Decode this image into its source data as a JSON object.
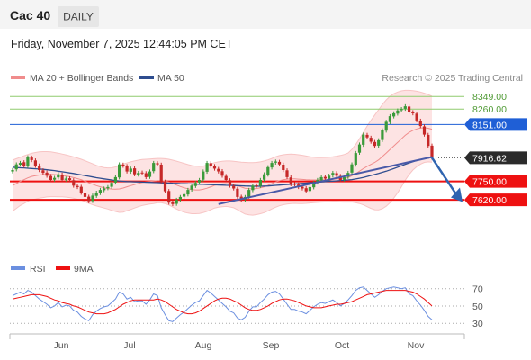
{
  "header": {
    "symbol": "Cac 40",
    "period": "DAILY"
  },
  "timestamp": "Friday, November 7, 2025 12:44:05 PM CET",
  "credit": "Research © 2025 Trading Central",
  "colors": {
    "up": "#3a9a3a",
    "down": "#c62828",
    "ma20": "#f08c8c",
    "band_fill": "#fde3e3",
    "ma50": "#2e4d8f",
    "trend": "#4a5aa8",
    "resistance_green": "#8fcc6e",
    "pivot_blue": "#1f5fd6",
    "support_red": "#ee1111",
    "rsi": "#6b8fe0",
    "rsi_ma": "#ee1111"
  },
  "chart_data": [
    {
      "type": "candlestick",
      "title": "Cac 40",
      "legend": [
        "MA 20 + Bollinger Bands",
        "MA 50"
      ],
      "x_ticks": [
        "Jun",
        "Jul",
        "Aug",
        "Sep",
        "Oct",
        "Nov"
      ],
      "ylim": [
        7240,
        8420
      ],
      "last_price": 7916.62,
      "levels": [
        {
          "value": 8349.0,
          "label": "8349.00",
          "kind": "resistance"
        },
        {
          "value": 8260.0,
          "label": "8260.00",
          "kind": "resistance"
        },
        {
          "value": 8151.0,
          "label": "8151.00",
          "kind": "pivot"
        },
        {
          "value": 7750.0,
          "label": "7750.00",
          "kind": "support"
        },
        {
          "value": 7620.0,
          "label": "7620.00",
          "kind": "support"
        }
      ],
      "closes": [
        7830,
        7870,
        7880,
        7860,
        7920,
        7900,
        7860,
        7830,
        7810,
        7790,
        7760,
        7775,
        7800,
        7760,
        7770,
        7760,
        7720,
        7710,
        7670,
        7640,
        7610,
        7650,
        7670,
        7690,
        7700,
        7710,
        7740,
        7780,
        7870,
        7860,
        7820,
        7840,
        7800,
        7810,
        7810,
        7780,
        7820,
        7880,
        7870,
        7750,
        7680,
        7600,
        7590,
        7620,
        7640,
        7660,
        7690,
        7720,
        7740,
        7760,
        7820,
        7880,
        7860,
        7840,
        7820,
        7790,
        7760,
        7720,
        7700,
        7640,
        7620,
        7640,
        7690,
        7720,
        7720,
        7760,
        7800,
        7850,
        7880,
        7890,
        7870,
        7830,
        7780,
        7730,
        7730,
        7710,
        7700,
        7680,
        7710,
        7740,
        7760,
        7780,
        7770,
        7790,
        7810,
        7790,
        7760,
        7780,
        7810,
        7870,
        7950,
        8010,
        8080,
        8060,
        8030,
        8000,
        8040,
        8110,
        8170,
        8210,
        8230,
        8250,
        8260,
        8280,
        8240,
        8230,
        8180,
        8140,
        8080,
        8000,
        7916.62
      ],
      "opens": [
        7820,
        7835,
        7868,
        7885,
        7858,
        7918,
        7898,
        7862,
        7828,
        7812,
        7788,
        7762,
        7778,
        7798,
        7762,
        7772,
        7758,
        7718,
        7712,
        7668,
        7642,
        7612,
        7648,
        7668,
        7688,
        7702,
        7712,
        7742,
        7778,
        7868,
        7858,
        7818,
        7842,
        7798,
        7812,
        7808,
        7782,
        7822,
        7878,
        7868,
        7748,
        7682,
        7602,
        7592,
        7622,
        7642,
        7658,
        7692,
        7718,
        7742,
        7762,
        7818,
        7878,
        7858,
        7838,
        7822,
        7788,
        7758,
        7718,
        7698,
        7642,
        7622,
        7642,
        7688,
        7722,
        7718,
        7762,
        7798,
        7848,
        7882,
        7888,
        7868,
        7828,
        7778,
        7732,
        7728,
        7712,
        7702,
        7682,
        7708,
        7742,
        7758,
        7782,
        7768,
        7792,
        7808,
        7788,
        7762,
        7782,
        7812,
        7868,
        7952,
        8008,
        8078,
        8058,
        8028,
        8002,
        8042,
        8108,
        8168,
        8208,
        8228,
        8252,
        8262,
        8278,
        8238,
        8228,
        8178,
        8138,
        8078,
        8002
      ],
      "ma20": [
        7720,
        7735,
        7750,
        7762,
        7775,
        7785,
        7790,
        7795,
        7798,
        7800,
        7800,
        7798,
        7795,
        7792,
        7788,
        7783,
        7777,
        7770,
        7762,
        7752,
        7740,
        7730,
        7720,
        7712,
        7705,
        7700,
        7696,
        7695,
        7697,
        7703,
        7712,
        7720,
        7728,
        7736,
        7742,
        7746,
        7749,
        7752,
        7756,
        7756,
        7752,
        7745,
        7735,
        7724,
        7714,
        7705,
        7698,
        7692,
        7690,
        7690,
        7694,
        7702,
        7712,
        7722,
        7728,
        7732,
        7734,
        7732,
        7728,
        7720,
        7710,
        7702,
        7698,
        7697,
        7700,
        7705,
        7712,
        7722,
        7734,
        7746,
        7755,
        7762,
        7766,
        7768,
        7768,
        7766,
        7764,
        7762,
        7761,
        7760,
        7760,
        7761,
        7762,
        7763,
        7765,
        7767,
        7769,
        7772,
        7777,
        7790,
        7805,
        7822,
        7840,
        7856,
        7870,
        7884,
        7902,
        7925,
        7950,
        7975,
        8000,
        8025,
        8050,
        8075,
        8095,
        8110,
        8120,
        8126,
        8128,
        8125,
        8118
      ],
      "bb_upper": [
        7900,
        7910,
        7920,
        7930,
        7940,
        7948,
        7954,
        7958,
        7960,
        7960,
        7958,
        7954,
        7949,
        7943,
        7937,
        7930,
        7923,
        7915,
        7906,
        7896,
        7885,
        7874,
        7863,
        7854,
        7848,
        7845,
        7846,
        7852,
        7862,
        7872,
        7880,
        7888,
        7894,
        7900,
        7904,
        7906,
        7908,
        7910,
        7912,
        7912,
        7910,
        7906,
        7900,
        7893,
        7885,
        7877,
        7869,
        7862,
        7858,
        7856,
        7858,
        7865,
        7874,
        7882,
        7888,
        7892,
        7894,
        7894,
        7892,
        7889,
        7886,
        7884,
        7882,
        7882,
        7884,
        7888,
        7894,
        7902,
        7912,
        7924,
        7932,
        7938,
        7941,
        7942,
        7941,
        7938,
        7934,
        7929,
        7924,
        7920,
        7918,
        7918,
        7919,
        7921,
        7924,
        7928,
        7933,
        7940,
        7950,
        7975,
        8010,
        8050,
        8095,
        8140,
        8180,
        8218,
        8255,
        8292,
        8325,
        8350,
        8368,
        8380,
        8388,
        8392,
        8392,
        8390,
        8386,
        8380,
        8372,
        8362,
        8350
      ],
      "bb_lower": [
        7540,
        7560,
        7580,
        7594,
        7610,
        7622,
        7626,
        7632,
        7636,
        7640,
        7642,
        7642,
        7641,
        7641,
        7639,
        7636,
        7631,
        7625,
        7618,
        7608,
        7595,
        7586,
        7577,
        7570,
        7562,
        7555,
        7546,
        7538,
        7532,
        7534,
        7544,
        7552,
        7562,
        7572,
        7580,
        7586,
        7590,
        7594,
        7600,
        7600,
        7594,
        7584,
        7570,
        7555,
        7543,
        7533,
        7527,
        7522,
        7522,
        7524,
        7530,
        7539,
        7550,
        7562,
        7568,
        7572,
        7574,
        7570,
        7564,
        7551,
        7534,
        7520,
        7514,
        7512,
        7516,
        7522,
        7530,
        7542,
        7556,
        7568,
        7578,
        7586,
        7591,
        7594,
        7595,
        7594,
        7594,
        7595,
        7598,
        7600,
        7602,
        7604,
        7605,
        7605,
        7606,
        7606,
        7605,
        7604,
        7604,
        7605,
        7600,
        7594,
        7585,
        7572,
        7560,
        7550,
        7549,
        7558,
        7575,
        7600,
        7632,
        7670,
        7712,
        7758,
        7798,
        7830,
        7854,
        7872,
        7884,
        7888,
        7886
      ],
      "ma50": [
        7850,
        7848,
        7846,
        7845,
        7843,
        7841,
        7839,
        7837,
        7835,
        7832,
        7829,
        7826,
        7822,
        7818,
        7814,
        7810,
        7806,
        7801,
        7796,
        7791,
        7786,
        7781,
        7776,
        7772,
        7768,
        7764,
        7760,
        7756,
        7753,
        7751,
        7749,
        7748,
        7747,
        7746,
        7745,
        7744,
        7743,
        7742,
        7741,
        7740,
        7739,
        7738,
        7737,
        7736,
        7735,
        7734,
        7733,
        7732,
        7731,
        7730,
        7729,
        7728,
        7727,
        7726,
        7725,
        7724,
        7723,
        7722,
        7721,
        7720,
        7719,
        7718,
        7717,
        7716,
        7716,
        7716,
        7717,
        7718,
        7720,
        7722,
        7724,
        7726,
        7728,
        7730,
        7732,
        7734,
        7736,
        7738,
        7740,
        7742,
        7744,
        7746,
        7748,
        7750,
        7752,
        7754,
        7756,
        7758,
        7760,
        7763,
        7767,
        7772,
        7778,
        7785,
        7792,
        7799,
        7806,
        7814,
        7822,
        7831,
        7840,
        7850,
        7860,
        7870,
        7880,
        7889,
        7897,
        7904,
        7910,
        7915,
        7920
      ]
    },
    {
      "type": "line",
      "title": "RSI",
      "legend": [
        "RSI",
        "9MA"
      ],
      "x_ticks": [
        "Jun",
        "Jul",
        "Aug",
        "Sep",
        "Oct",
        "Nov"
      ],
      "y_ticks": [
        70,
        50,
        30
      ],
      "ylim": [
        25,
        78
      ],
      "series": [
        {
          "name": "RSI",
          "values": [
            62,
            64,
            66,
            64,
            68,
            66,
            62,
            58,
            55,
            52,
            48,
            50,
            54,
            49,
            51,
            50,
            45,
            43,
            38,
            35,
            33,
            40,
            44,
            47,
            49,
            50,
            54,
            58,
            66,
            64,
            58,
            60,
            55,
            56,
            56,
            52,
            57,
            64,
            62,
            48,
            40,
            33,
            32,
            36,
            40,
            43,
            47,
            51,
            54,
            56,
            62,
            68,
            65,
            61,
            57,
            53,
            49,
            44,
            42,
            36,
            34,
            37,
            44,
            49,
            49,
            54,
            58,
            63,
            66,
            67,
            64,
            58,
            52,
            46,
            46,
            44,
            43,
            41,
            45,
            49,
            52,
            54,
            53,
            55,
            57,
            54,
            50,
            53,
            57,
            62,
            68,
            71,
            72,
            68,
            64,
            60,
            63,
            67,
            70,
            71,
            72,
            71,
            70,
            71,
            64,
            62,
            56,
            51,
            45,
            38,
            34
          ]
        },
        {
          "name": "9MA",
          "values": [
            58,
            59,
            60,
            61,
            62,
            63,
            63,
            63,
            62,
            61,
            59,
            57,
            56,
            54,
            53,
            52,
            50,
            49,
            47,
            45,
            43,
            42,
            41,
            41,
            41,
            42,
            44,
            46,
            49,
            52,
            54,
            56,
            57,
            57,
            57,
            57,
            57,
            57,
            58,
            57,
            55,
            52,
            49,
            46,
            44,
            42,
            41,
            41,
            42,
            44,
            47,
            50,
            53,
            56,
            58,
            59,
            59,
            58,
            56,
            54,
            51,
            48,
            46,
            45,
            45,
            46,
            48,
            50,
            53,
            55,
            57,
            58,
            58,
            57,
            56,
            54,
            52,
            50,
            49,
            48,
            48,
            48,
            49,
            50,
            51,
            52,
            52,
            53,
            54,
            55,
            57,
            59,
            61,
            63,
            64,
            65,
            66,
            67,
            68,
            68,
            68,
            68,
            68,
            68,
            67,
            66,
            64,
            61,
            58,
            54,
            50
          ]
        }
      ]
    }
  ]
}
